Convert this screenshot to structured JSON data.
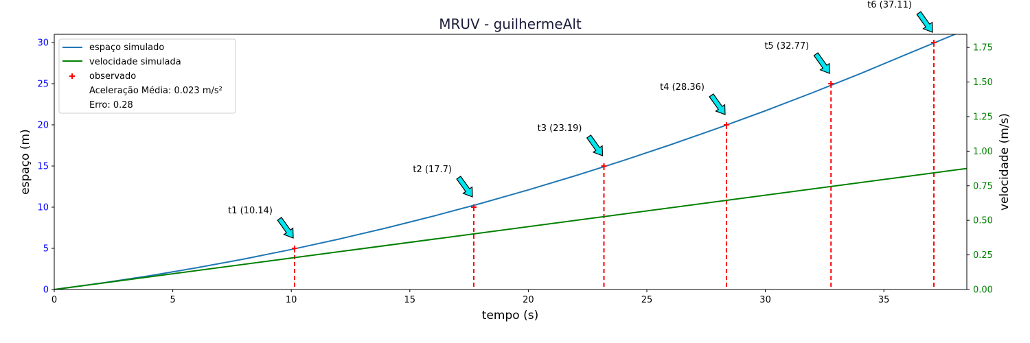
{
  "chart_data": {
    "type": "line",
    "title": "MRUV - guilhermeAlt",
    "xlabel": "tempo (s)",
    "ylabel_left": "espaço (m)",
    "ylabel_right": "velocidade (m/s)",
    "xlim": [
      0,
      38.5
    ],
    "ylim_left": [
      0,
      31
    ],
    "ylim_right": [
      0,
      1.845
    ],
    "x_ticks": [
      0,
      5,
      10,
      15,
      20,
      25,
      30,
      35
    ],
    "y_left_ticks": [
      0,
      5,
      10,
      15,
      20,
      25,
      30
    ],
    "y_right_ticks": [
      "0.00",
      "0.25",
      "0.50",
      "0.75",
      "1.00",
      "1.25",
      "1.50",
      "1.75"
    ],
    "grid": false,
    "legend_position": "upper-left",
    "colors": {
      "espaco": "#1f77b4",
      "velocidade": "#008000",
      "observado": "#ff0000",
      "arrow": "#00e5ee",
      "left_ticks": "#0000ff",
      "right_ticks": "#008000"
    },
    "series": [
      {
        "name": "espaço simulado",
        "axis": "left",
        "x": [
          0,
          2,
          4,
          6,
          8,
          10,
          12,
          14,
          16,
          18,
          20,
          22,
          24,
          26,
          28,
          30,
          32,
          34,
          36,
          38.5
        ],
        "values": [
          0,
          0.78,
          1.66,
          2.63,
          3.7,
          4.86,
          6.12,
          7.47,
          8.92,
          10.46,
          12.1,
          13.83,
          15.66,
          17.58,
          19.6,
          21.71,
          23.92,
          26.22,
          28.62,
          31.6
        ]
      },
      {
        "name": "velocidade simulada",
        "axis": "right",
        "x": [
          0,
          38.5
        ],
        "values": [
          0,
          0.875
        ]
      }
    ],
    "observed": {
      "name": "observado",
      "points": [
        {
          "t": 10.14,
          "s": 5
        },
        {
          "t": 17.7,
          "s": 10
        },
        {
          "t": 23.19,
          "s": 15
        },
        {
          "t": 28.36,
          "s": 20
        },
        {
          "t": 32.77,
          "s": 25
        },
        {
          "t": 37.11,
          "s": 30
        }
      ]
    },
    "annotations": [
      "t1 (10.14)",
      "t2 (17.7)",
      "t3 (23.19)",
      "t4 (28.36)",
      "t5 (32.77)",
      "t6 (37.11)"
    ],
    "legend": {
      "entries": [
        "espaço simulado",
        "velocidade simulada",
        "observado"
      ],
      "extra": [
        "Aceleração Média: 0.023 m/s²",
        "Erro: 0.28"
      ]
    }
  }
}
